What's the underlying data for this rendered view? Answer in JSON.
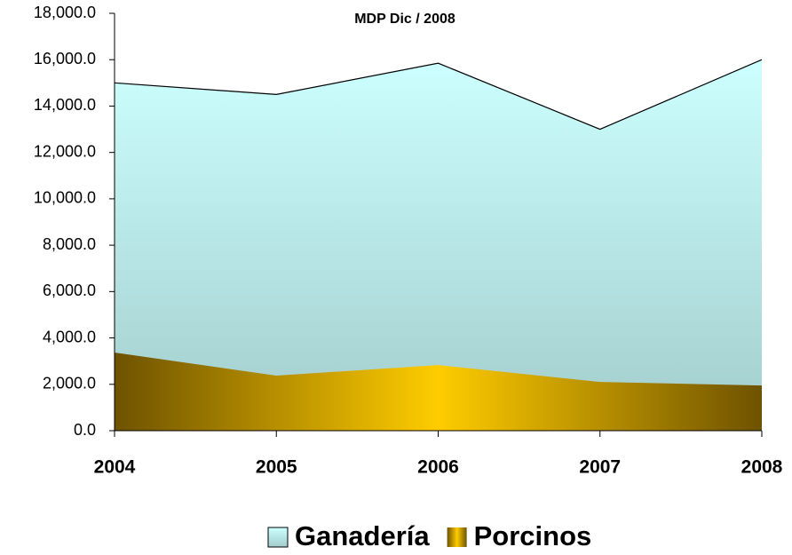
{
  "chart_data": {
    "type": "area",
    "title": "MDP Dic / 2008",
    "categories": [
      "2004",
      "2005",
      "2006",
      "2007",
      "2008"
    ],
    "series": [
      {
        "name": "Ganadería",
        "color": "#ccffff",
        "values": [
          15000,
          14500,
          15850,
          13000,
          16000
        ]
      },
      {
        "name": "Porcinos",
        "color": "#ffcc00",
        "values": [
          3370,
          2375,
          2830,
          2100,
          1950
        ]
      }
    ],
    "ylim": [
      0,
      18000
    ],
    "yticks": [
      {
        "value": 0,
        "label": "0.0"
      },
      {
        "value": 2000,
        "label": "2,000.0"
      },
      {
        "value": 4000,
        "label": "4,000.0"
      },
      {
        "value": 6000,
        "label": "6,000.0"
      },
      {
        "value": 8000,
        "label": "8,000.0"
      },
      {
        "value": 10000,
        "label": "10,000.0"
      },
      {
        "value": 12000,
        "label": "12,000.0"
      },
      {
        "value": 14000,
        "label": "14,000.0"
      },
      {
        "value": 16000,
        "label": "16,000.0"
      },
      {
        "value": 18000,
        "label": "18,000.0"
      }
    ],
    "legend": "bottom"
  }
}
